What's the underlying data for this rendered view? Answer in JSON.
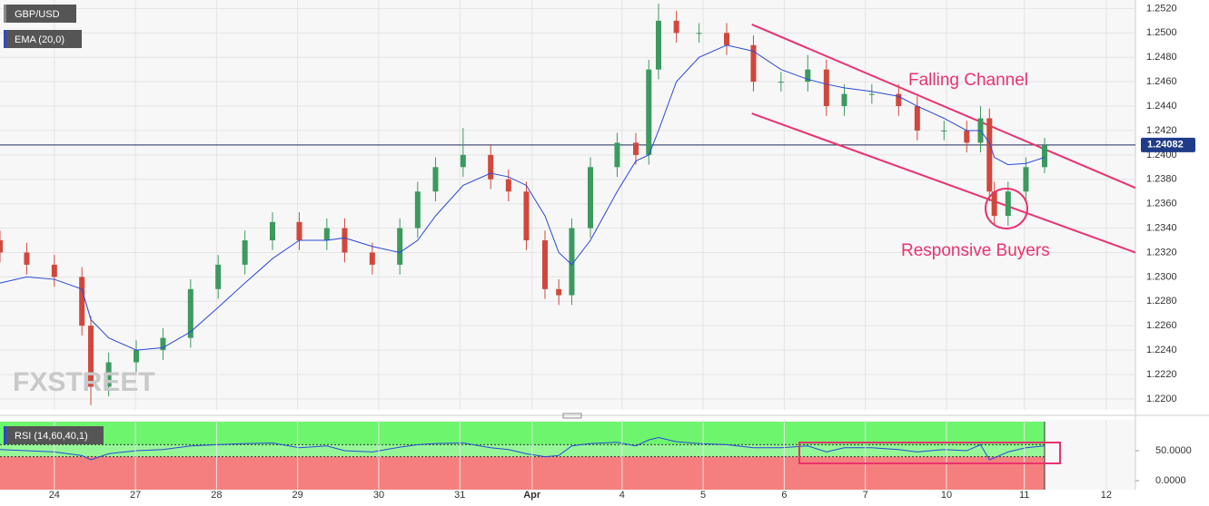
{
  "chart_data": [
    {
      "type": "candlestick",
      "symbol": "GBP/USD",
      "indicator": "EMA (20,0)",
      "watermark": "FXSTREET",
      "up_color": "#3c9a5f",
      "down_color": "#d2473c",
      "ema_color": "#2a48d6",
      "grid": true,
      "x": [
        -0.67,
        -0.34,
        0,
        0.34,
        0.45,
        0.67,
        1.01,
        1.34,
        1.68,
        2.02,
        2.35,
        2.69,
        3.02,
        3.36,
        3.58,
        3.92,
        4.26,
        4.48,
        4.7,
        5.04,
        5.38,
        5.6,
        5.82,
        6.05,
        6.22,
        6.38,
        6.61,
        6.94,
        7.17,
        7.33,
        7.45,
        7.67,
        7.95,
        8.29,
        8.62,
        8.96,
        9.29,
        9.52,
        9.74,
        10.08,
        10.41,
        10.64,
        10.97,
        11.25,
        11.42,
        11.53,
        11.59,
        11.76,
        11.98,
        12.21
      ],
      "open": [
        1.233,
        1.232,
        1.231,
        1.23,
        1.226,
        1.221,
        1.223,
        1.224,
        1.225,
        1.229,
        1.231,
        1.233,
        1.2345,
        1.233,
        1.234,
        1.232,
        1.231,
        1.234,
        1.237,
        1.239,
        1.24,
        1.238,
        1.237,
        1.233,
        1.229,
        1.2285,
        1.234,
        1.239,
        1.241,
        1.24,
        1.247,
        1.251,
        1.25,
        1.25,
        1.249,
        1.246,
        1.246,
        1.247,
        1.244,
        1.245,
        1.245,
        1.244,
        1.242,
        1.242,
        1.241,
        1.243,
        1.237,
        1.235,
        1.237,
        1.239
      ],
      "high": [
        1.2338,
        1.2328,
        1.2318,
        1.2308,
        1.2268,
        1.2238,
        1.2248,
        1.2258,
        1.2298,
        1.2318,
        1.2338,
        1.2353,
        1.2353,
        1.2348,
        1.2348,
        1.2328,
        1.2348,
        1.2378,
        1.2398,
        1.2422,
        1.2408,
        1.2388,
        1.2378,
        1.2338,
        1.2298,
        1.2348,
        1.2398,
        1.2418,
        1.2418,
        1.2478,
        1.2524,
        1.2518,
        1.2508,
        1.2508,
        1.2498,
        1.2468,
        1.2482,
        1.2478,
        1.2458,
        1.2458,
        1.2458,
        1.2448,
        1.2428,
        1.2428,
        1.244,
        1.2438,
        1.2378,
        1.2378,
        1.2398,
        1.2414
      ],
      "low": [
        1.2312,
        1.2302,
        1.2292,
        1.2252,
        1.2195,
        1.2202,
        1.2222,
        1.2232,
        1.2242,
        1.2282,
        1.2302,
        1.2322,
        1.2322,
        1.2322,
        1.2312,
        1.2302,
        1.2302,
        1.2332,
        1.2362,
        1.2382,
        1.2372,
        1.2362,
        1.2322,
        1.2282,
        1.2277,
        1.2277,
        1.2332,
        1.2382,
        1.2392,
        1.2392,
        1.2462,
        1.2492,
        1.2492,
        1.2482,
        1.2452,
        1.2452,
        1.2452,
        1.2432,
        1.2432,
        1.2442,
        1.2432,
        1.2412,
        1.2412,
        1.2402,
        1.2402,
        1.2362,
        1.2342,
        1.2342,
        1.2362,
        1.2385
      ],
      "close": [
        1.232,
        1.231,
        1.23,
        1.226,
        1.221,
        1.223,
        1.224,
        1.225,
        1.229,
        1.231,
        1.233,
        1.2345,
        1.233,
        1.234,
        1.232,
        1.231,
        1.234,
        1.237,
        1.239,
        1.24,
        1.238,
        1.237,
        1.233,
        1.229,
        1.2285,
        1.234,
        1.239,
        1.241,
        1.24,
        1.247,
        1.251,
        1.25,
        1.25,
        1.249,
        1.246,
        1.246,
        1.247,
        1.244,
        1.245,
        1.245,
        1.244,
        1.242,
        1.242,
        1.241,
        1.243,
        1.237,
        1.235,
        1.237,
        1.239,
        1.2408
      ],
      "ema": [
        1.2295,
        1.23,
        1.2298,
        1.229,
        1.2265,
        1.225,
        1.224,
        1.2242,
        1.2255,
        1.2275,
        1.2295,
        1.2315,
        1.233,
        1.233,
        1.2332,
        1.2325,
        1.232,
        1.233,
        1.235,
        1.2375,
        1.2385,
        1.2382,
        1.2375,
        1.235,
        1.232,
        1.231,
        1.233,
        1.237,
        1.2395,
        1.24,
        1.242,
        1.246,
        1.248,
        1.249,
        1.2485,
        1.247,
        1.2462,
        1.2458,
        1.2455,
        1.2452,
        1.2448,
        1.244,
        1.243,
        1.242,
        1.242,
        1.241,
        1.2398,
        1.2392,
        1.2393,
        1.2398
      ],
      "last_price": 1.24082,
      "channel_color": "#e8336d",
      "channel_upper": [
        [
          8.6,
          1.2507
        ],
        [
          13.33,
          1.2373
        ]
      ],
      "channel_lower": [
        [
          8.6,
          1.2434
        ],
        [
          13.33,
          1.232
        ]
      ],
      "annotations": [
        "Falling Channel",
        "Responsive Buyers"
      ],
      "xlim": [
        -0.67,
        13.33
      ],
      "ylim": [
        1.2191,
        1.2527
      ],
      "xticks": [
        {
          "value": 0,
          "label": "24"
        },
        {
          "value": 1,
          "label": "27"
        },
        {
          "value": 2,
          "label": "28"
        },
        {
          "value": 3,
          "label": "29"
        },
        {
          "value": 4,
          "label": "30"
        },
        {
          "value": 5,
          "label": "31"
        },
        {
          "value": 5.89,
          "label": "Apr"
        },
        {
          "value": 7,
          "label": "4"
        },
        {
          "value": 8,
          "label": "5"
        },
        {
          "value": 9,
          "label": "6"
        },
        {
          "value": 10,
          "label": "7"
        },
        {
          "value": 11,
          "label": "10"
        },
        {
          "value": 11.96,
          "label": "11"
        },
        {
          "value": 12.97,
          "label": "12"
        }
      ],
      "yticks": [
        {
          "value": 1.22,
          "label": "1.2200"
        },
        {
          "value": 1.222,
          "label": "1.2220"
        },
        {
          "value": 1.224,
          "label": "1.2240"
        },
        {
          "value": 1.226,
          "label": "1.2260"
        },
        {
          "value": 1.228,
          "label": "1.2280"
        },
        {
          "value": 1.23,
          "label": "1.2300"
        },
        {
          "value": 1.232,
          "label": "1.2320"
        },
        {
          "value": 1.234,
          "label": "1.2340"
        },
        {
          "value": 1.236,
          "label": "1.2360"
        },
        {
          "value": 1.238,
          "label": "1.2380"
        },
        {
          "value": 1.24,
          "label": "1.2400"
        },
        {
          "value": 1.242,
          "label": "1.2420"
        },
        {
          "value": 1.244,
          "label": "1.2440"
        },
        {
          "value": 1.246,
          "label": "1.2460"
        },
        {
          "value": 1.248,
          "label": "1.2480"
        },
        {
          "value": 1.25,
          "label": "1.2500"
        },
        {
          "value": 1.252,
          "label": "1.2520"
        }
      ]
    },
    {
      "type": "line",
      "title": "RSI (14,60,40,1)",
      "color": "#2a48d6",
      "values": [
        52,
        50,
        48,
        42,
        35,
        45,
        50,
        52,
        58,
        60,
        62,
        63,
        55,
        58,
        50,
        48,
        56,
        60,
        62,
        63,
        55,
        52,
        45,
        40,
        42,
        58,
        62,
        64,
        58,
        68,
        72,
        65,
        62,
        60,
        55,
        55,
        58,
        48,
        55,
        55,
        52,
        48,
        52,
        50,
        60,
        35,
        38,
        48,
        55,
        58
      ],
      "upper_level": 60,
      "lower_level": 40,
      "upper_color": "#6ef56e",
      "lower_color": "#f57f7f",
      "ylim": [
        -15,
        101.5
      ],
      "yticks": [
        {
          "value": 50,
          "label": "50.0000"
        },
        {
          "value": 0,
          "label": "0.0000"
        }
      ]
    }
  ]
}
